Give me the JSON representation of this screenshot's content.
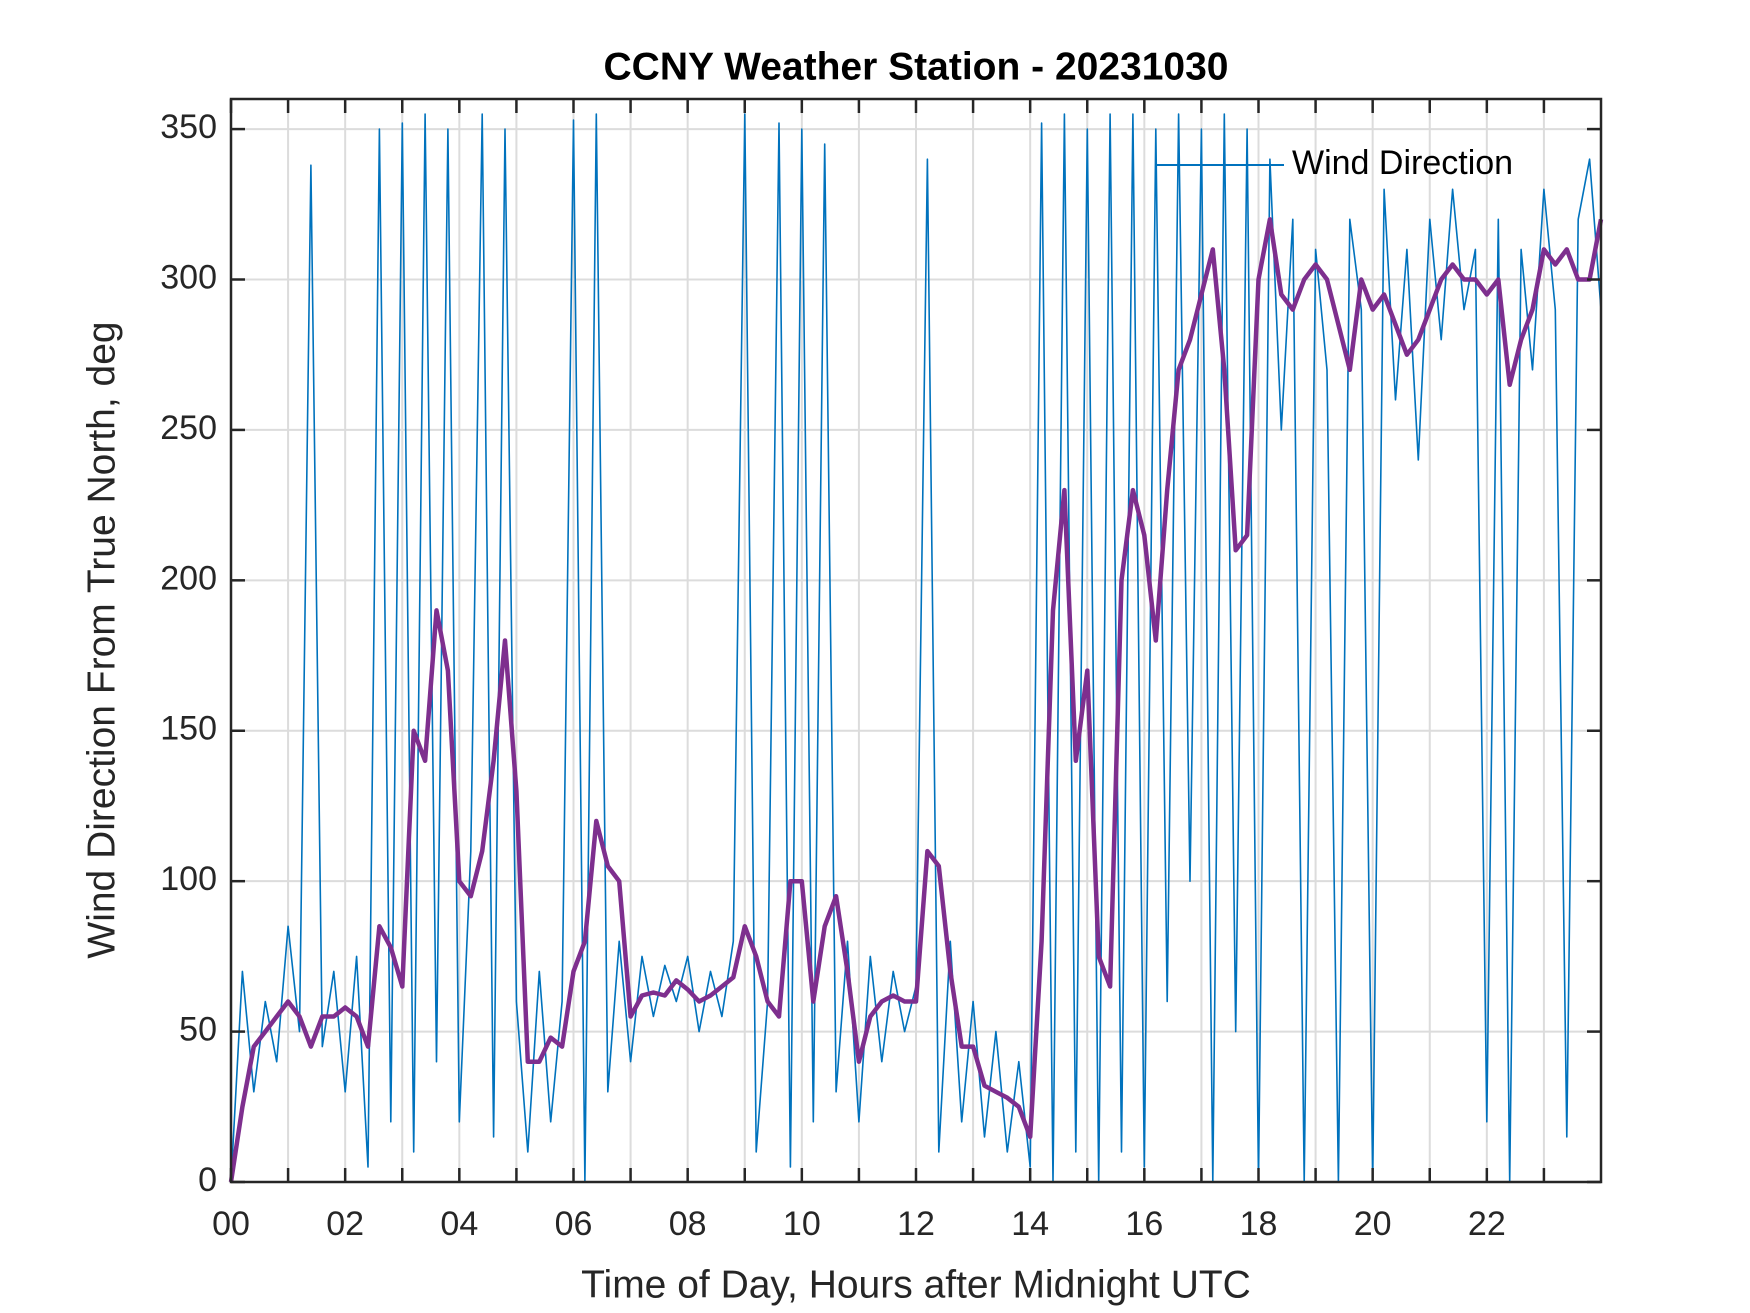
{
  "chart_data": {
    "type": "line",
    "title": "CCNY Weather Station - 20231030",
    "xlabel": "Time of Day, Hours after Midnight UTC",
    "ylabel": "Wind Direction From True North, deg",
    "x": [
      0,
      0.2,
      0.4,
      0.6,
      0.8,
      1.0,
      1.2,
      1.4,
      1.6,
      1.8,
      2.0,
      2.2,
      2.4,
      2.6,
      2.8,
      3.0,
      3.2,
      3.4,
      3.6,
      3.8,
      4.0,
      4.2,
      4.4,
      4.6,
      4.8,
      5.0,
      5.2,
      5.4,
      5.6,
      5.8,
      6.0,
      6.2,
      6.4,
      6.6,
      6.8,
      7.0,
      7.2,
      7.4,
      7.6,
      7.8,
      8.0,
      8.2,
      8.4,
      8.6,
      8.8,
      9.0,
      9.2,
      9.4,
      9.6,
      9.8,
      10.0,
      10.2,
      10.4,
      10.6,
      10.8,
      11.0,
      11.2,
      11.4,
      11.6,
      11.8,
      12.0,
      12.2,
      12.4,
      12.6,
      12.8,
      13.0,
      13.2,
      13.4,
      13.6,
      13.8,
      14.0,
      14.2,
      14.4,
      14.6,
      14.8,
      15.0,
      15.2,
      15.4,
      15.6,
      15.8,
      16.0,
      16.2,
      16.4,
      16.6,
      16.8,
      17.0,
      17.2,
      17.4,
      17.6,
      17.8,
      18.0,
      18.2,
      18.4,
      18.6,
      18.8,
      19.0,
      19.2,
      19.4,
      19.6,
      19.8,
      20.0,
      20.2,
      20.4,
      20.6,
      20.8,
      21.0,
      21.2,
      21.4,
      21.6,
      21.8,
      22.0,
      22.2,
      22.4,
      22.6,
      22.8,
      23.0,
      23.2,
      23.4,
      23.6,
      23.8,
      24.0
    ],
    "series": [
      {
        "name": "Wind Direction",
        "color": "#0072bd",
        "values": [
          0,
          70,
          30,
          60,
          40,
          85,
          50,
          338,
          45,
          70,
          30,
          75,
          5,
          350,
          20,
          352,
          10,
          355,
          40,
          350,
          20,
          110,
          355,
          15,
          350,
          60,
          10,
          70,
          20,
          60,
          353,
          0,
          355,
          30,
          80,
          40,
          75,
          55,
          72,
          60,
          75,
          50,
          70,
          55,
          80,
          355,
          10,
          60,
          352,
          5,
          350,
          20,
          345,
          30,
          80,
          20,
          75,
          40,
          70,
          50,
          65,
          340,
          10,
          80,
          20,
          60,
          15,
          50,
          10,
          40,
          5,
          352,
          0,
          355,
          10,
          350,
          0,
          355,
          10,
          355,
          5,
          350,
          60,
          355,
          100,
          350,
          0,
          355,
          50,
          350,
          0,
          340,
          250,
          320,
          0,
          310,
          270,
          0,
          320,
          290,
          0,
          330,
          260,
          310,
          240,
          320,
          280,
          330,
          290,
          310,
          20,
          320,
          0,
          310,
          270,
          330,
          290,
          15,
          320,
          340,
          290
        ]
      },
      {
        "color": "#7e2f8e",
        "values": [
          0,
          25,
          45,
          50,
          55,
          60,
          55,
          45,
          55,
          55,
          58,
          55,
          45,
          85,
          78,
          65,
          150,
          140,
          190,
          170,
          100,
          95,
          110,
          140,
          180,
          130,
          40,
          40,
          48,
          45,
          70,
          80,
          120,
          105,
          100,
          55,
          62,
          63,
          62,
          67,
          64,
          60,
          62,
          65,
          68,
          85,
          75,
          60,
          55,
          100,
          100,
          60,
          85,
          95,
          70,
          40,
          55,
          60,
          62,
          60,
          60,
          110,
          105,
          70,
          45,
          45,
          32,
          30,
          28,
          25,
          15,
          80,
          190,
          230,
          140,
          170,
          75,
          65,
          200,
          230,
          215,
          180,
          230,
          270,
          280,
          295,
          310,
          270,
          210,
          215,
          300,
          320,
          295,
          290,
          300,
          305,
          300,
          285,
          270,
          300,
          290,
          295,
          285,
          275,
          280,
          290,
          300,
          305,
          300,
          300,
          295,
          300,
          265,
          280,
          290,
          310,
          305,
          310,
          300,
          300,
          320
        ]
      }
    ],
    "xlim": [
      0,
      24
    ],
    "xticks": [
      {
        "value": 0,
        "label": "00"
      },
      {
        "value": 2,
        "label": "02"
      },
      {
        "value": 4,
        "label": "04"
      },
      {
        "value": 6,
        "label": "06"
      },
      {
        "value": 8,
        "label": "08"
      },
      {
        "value": 10,
        "label": "10"
      },
      {
        "value": 12,
        "label": "12"
      },
      {
        "value": 14,
        "label": "14"
      },
      {
        "value": 16,
        "label": "16"
      },
      {
        "value": 18,
        "label": "18"
      },
      {
        "value": 20,
        "label": "20"
      },
      {
        "value": 22,
        "label": "22"
      }
    ],
    "xminorticks": [
      1,
      3,
      5,
      7,
      9,
      11,
      13,
      15,
      17,
      19,
      21,
      23
    ],
    "ylim": [
      0,
      360
    ],
    "yticks": [
      0,
      50,
      100,
      150,
      200,
      250,
      300,
      350
    ],
    "grid": true,
    "legend": "northeast"
  }
}
